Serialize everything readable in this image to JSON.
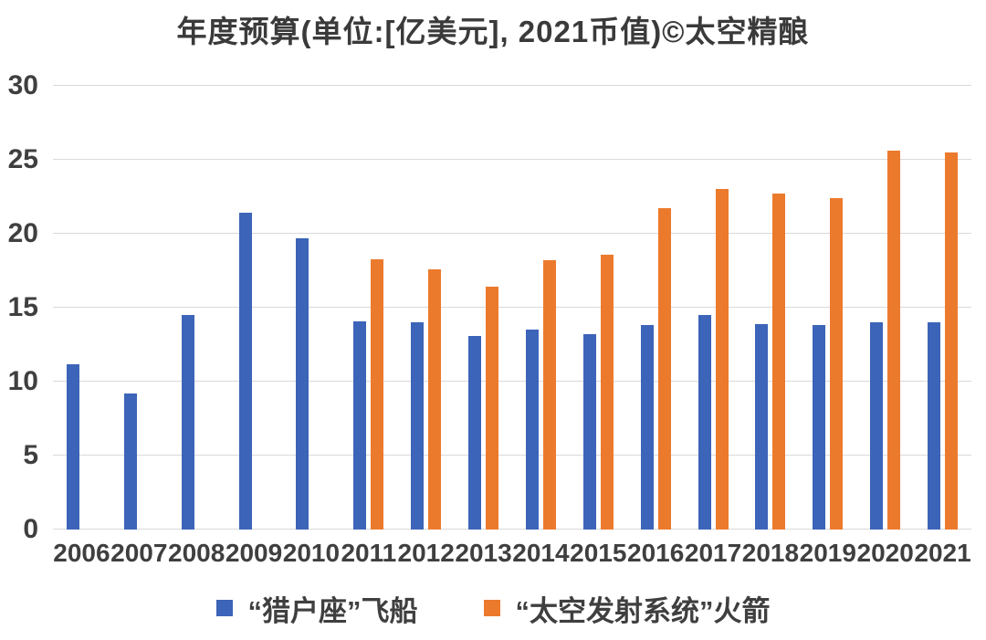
{
  "title": "年度预算(单位:[亿美元], 2021币值)©太空精酿",
  "colors": {
    "orion_blue": "#3c64b8",
    "sls_orange": "#ec7a2d",
    "gridline": "#d9d9d9",
    "text": "#3f3f3f"
  },
  "chart_data": {
    "type": "bar",
    "title": "年度预算(单位:[亿美元], 2021币值)©太空精酿",
    "categories": [
      "2006",
      "2007",
      "2008",
      "2009",
      "2010",
      "2011",
      "2012",
      "2013",
      "2014",
      "2015",
      "2016",
      "2017",
      "2018",
      "2019",
      "2020",
      "2021"
    ],
    "series": [
      {
        "name": "“猎户座”飞船",
        "color": "#3c64b8",
        "values": [
          11.2,
          9.2,
          14.5,
          21.4,
          19.7,
          14.1,
          14.0,
          13.1,
          13.5,
          13.2,
          13.8,
          14.5,
          13.9,
          13.8,
          14.0,
          14.0
        ]
      },
      {
        "name": "“太空发射系统”火箭",
        "color": "#ec7a2d",
        "values": [
          null,
          null,
          null,
          null,
          null,
          18.3,
          17.6,
          16.4,
          18.2,
          18.6,
          21.7,
          23.0,
          22.7,
          22.4,
          25.6,
          25.5
        ]
      }
    ],
    "xlabel": "",
    "ylabel": "",
    "ylim": [
      0,
      30
    ],
    "yticks": [
      0,
      5,
      10,
      15,
      20,
      25,
      30
    ],
    "grid": true,
    "legend_position": "bottom"
  }
}
